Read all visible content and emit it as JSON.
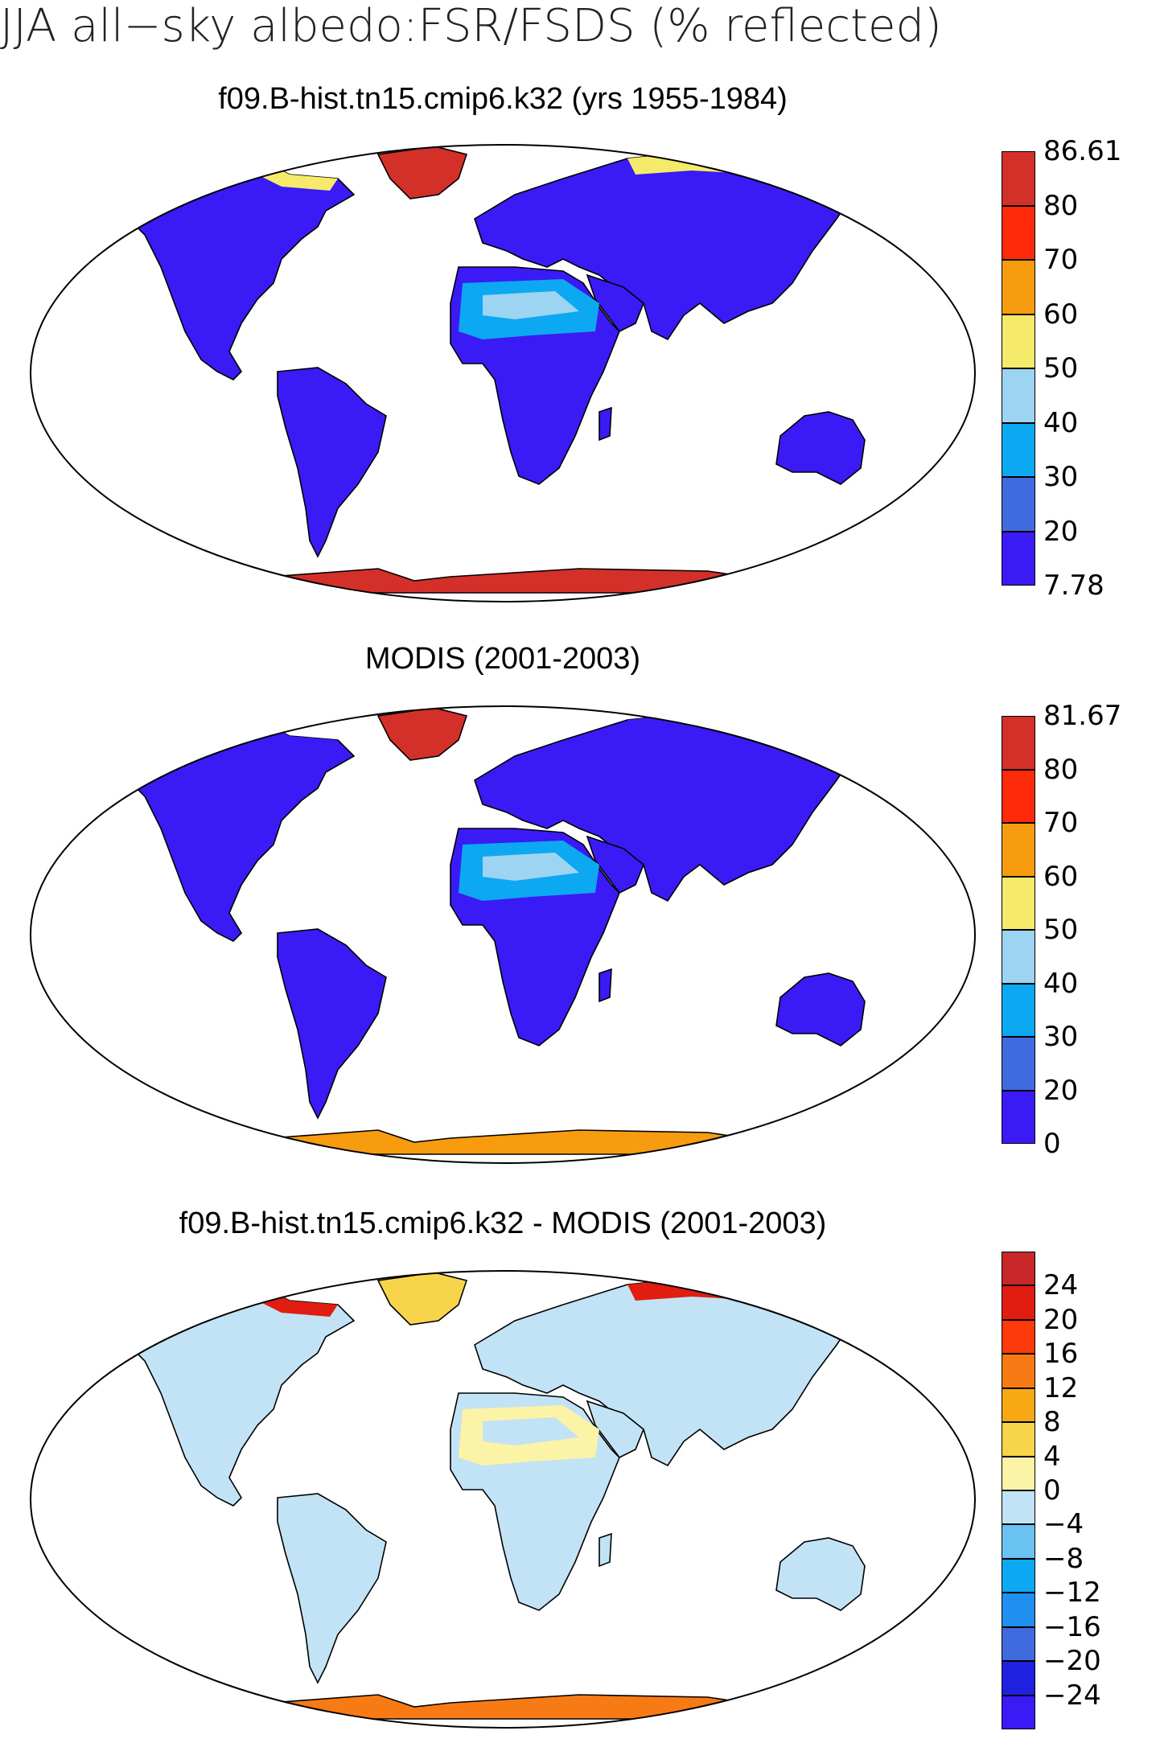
{
  "title": "JJA all−sky albedo:FSR/FSDS (% reflected)",
  "panels": [
    {
      "title": "f09.B-hist.tn15.cmip6.k32 (yrs 1955-1984)",
      "colorbar": {
        "colors": [
          "#3a1bf5",
          "#3f6bde",
          "#0ca8f2",
          "#9dd4f2",
          "#f5ea6a",
          "#f79c0e",
          "#ff2a0a",
          "#d4302a"
        ],
        "labels": [
          "7.78",
          "20",
          "30",
          "40",
          "50",
          "60",
          "70",
          "80",
          "86.61"
        ]
      },
      "fills": {
        "land": "#3a1bf5",
        "desert": "#0ca8f2",
        "desert_light": "#9dd4f2",
        "greenland": "#d4302a",
        "antarctica": "#d4302a",
        "highlat": "#f5ea6a"
      }
    },
    {
      "title": "MODIS (2001-2003)",
      "colorbar": {
        "colors": [
          "#3a1bf5",
          "#3f6bde",
          "#0ca8f2",
          "#9dd4f2",
          "#f5ea6a",
          "#f79c0e",
          "#ff2a0a",
          "#d4302a"
        ],
        "labels": [
          "0",
          "20",
          "30",
          "40",
          "50",
          "60",
          "70",
          "80",
          "81.67"
        ]
      },
      "fills": {
        "land": "#3a1bf5",
        "desert": "#0ca8f2",
        "desert_light": "#9dd4f2",
        "greenland": "#d4302a",
        "antarctica": "#f79c0e",
        "highlat": "#3a1bf5"
      }
    },
    {
      "title": "f09.B-hist.tn15.cmip6.k32 - MODIS (2001-2003)",
      "colorbar": {
        "colors": [
          "#3a1bf5",
          "#2020e0",
          "#3f6bde",
          "#1f8ff0",
          "#0ca8f2",
          "#69c2ef",
          "#c2e3f5",
          "#fbf3a6",
          "#f7d54a",
          "#f7a914",
          "#f77a14",
          "#ff3a0a",
          "#e01d10",
          "#c8282a"
        ],
        "labels": [
          "−24",
          "−20",
          "−16",
          "−12",
          "−8",
          "−4",
          "0",
          "4",
          "8",
          "12",
          "16",
          "20",
          "24"
        ]
      },
      "fills": {
        "land": "#c2e3f5",
        "desert": "#fbf3a6",
        "desert_light": "#c2e3f5",
        "greenland": "#f7d54a",
        "antarctica": "#f77a14",
        "highlat": "#e01d10"
      }
    }
  ]
}
